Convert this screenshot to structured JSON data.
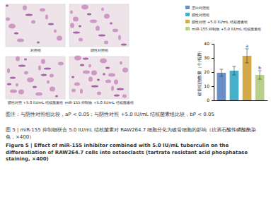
{
  "panels": {
    "labels": [
      "对照组",
      "阴性对照组",
      "阴性对照 +5.0 IU/mL 结核菌素组",
      "miR-155 抑制物 +5.0 IU/mL 结核菌素组"
    ]
  },
  "chart_data": {
    "type": "bar",
    "y_label": "破骨细胞数量（个/视野）",
    "categories": [
      "空白对照组",
      "阴性对照组",
      "阴性对照 +5.0 IU/mL 结核菌素组",
      "miR-155 抑制物 +5.0 IU/mL 结核菌素组"
    ],
    "values": [
      19.5,
      21,
      31.5,
      18
    ],
    "errors": [
      2.5,
      3,
      5,
      3
    ],
    "colors": [
      "#6a8fc8",
      "#45b0c8",
      "#d4a94c",
      "#b8d08a"
    ],
    "annotations": [
      {
        "category": "阴性对照 +5.0 IU/mL 结核菌素组",
        "text": "a"
      },
      {
        "category": "miR-155 抑制物 +5.0 IU/mL 结核菌素组",
        "text": "b"
      }
    ],
    "ylim": [
      0,
      40
    ],
    "yticks": [
      0,
      10,
      20,
      30,
      40
    ],
    "legend": "top-right",
    "tick_labels": "y"
  },
  "caption": {
    "note": "图注：与阴性对照组比较，aP < 0.05；与阴性对照 +5.0 IU/mL 结核菌素组比较，bP < 0.05",
    "title_zh": "图 5 | miR-155 抑制物联合 5.0 IU/mL 结核菌素对 RAW264.7 细胞分化为破骨细胞的影响（抗酒石酸性磷酸酶染色，×400）",
    "title_en": "Figure 5 | Effect of miR-155 inhibitor combined with 5.0 IU/mL tuberculin on the differentiation of RAW264.7 cells into osteoclasts (tartrate resistant acid phosphatase staining, ×400)"
  }
}
